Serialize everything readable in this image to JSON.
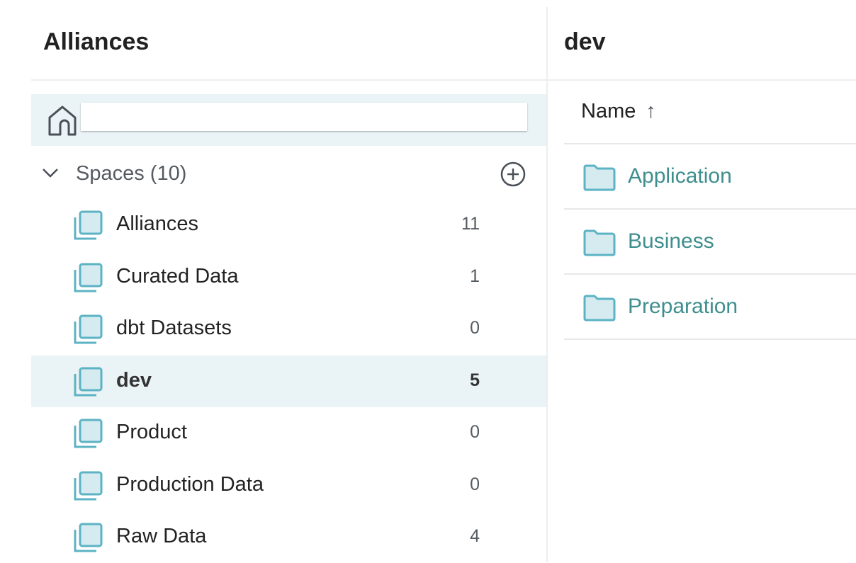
{
  "left_panel": {
    "title": "Alliances",
    "home": {
      "icon": "home-icon"
    },
    "spaces": {
      "label": "Spaces (10)",
      "add_icon": "plus-circle-icon",
      "items": [
        {
          "name": "Alliances",
          "count": "11"
        },
        {
          "name": "Curated Data",
          "count": "1"
        },
        {
          "name": "dbt Datasets",
          "count": "0"
        },
        {
          "name": "dev",
          "count": "5",
          "selected": true
        },
        {
          "name": "Product",
          "count": "0"
        },
        {
          "name": "Production Data",
          "count": "0"
        },
        {
          "name": "Raw Data",
          "count": "4"
        }
      ]
    }
  },
  "right_panel": {
    "title": "dev",
    "column_header": "Name",
    "sort_indicator": "↑",
    "rows": [
      {
        "name": "Application"
      },
      {
        "name": "Business"
      },
      {
        "name": "Preparation"
      }
    ]
  },
  "colors": {
    "accent": "#3f8e8e",
    "icon_stroke": "#5cb3c4",
    "icon_fill": "#d5ebf0",
    "selected_bg": "#eaf3f6"
  }
}
